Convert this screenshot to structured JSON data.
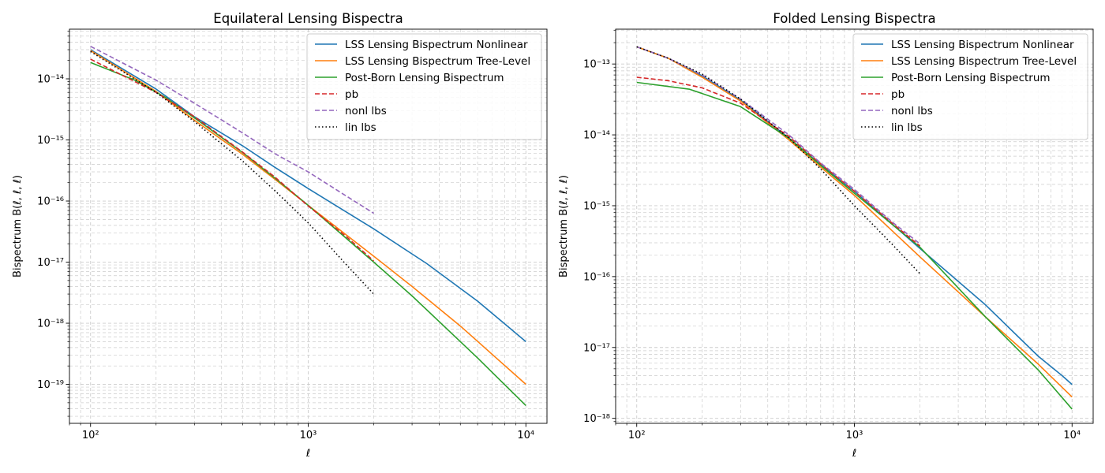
{
  "chart_data": [
    {
      "type": "line",
      "title": "Equilateral Lensing Bispectra",
      "xlabel": "ℓ",
      "ylabel": "Bispectrum B(ℓ, ℓ, ℓ)",
      "xscale": "log",
      "yscale": "log",
      "xlim": [
        80,
        12500
      ],
      "ylim": [
        2.3e-20,
        6.5e-14
      ],
      "x_ticks": [
        {
          "v": 100,
          "label": "10²"
        },
        {
          "v": 1000,
          "label": "10³"
        },
        {
          "v": 10000,
          "label": "10⁴"
        }
      ],
      "y_ticks": [
        {
          "v": 1e-19,
          "label": "10⁻¹⁹"
        },
        {
          "v": 1e-18,
          "label": "10⁻¹⁸"
        },
        {
          "v": 1e-17,
          "label": "10⁻¹⁷"
        },
        {
          "v": 1e-16,
          "label": "10⁻¹⁶"
        },
        {
          "v": 1e-15,
          "label": "10⁻¹⁵"
        },
        {
          "v": 1e-14,
          "label": "10⁻¹⁴"
        }
      ],
      "grid": true,
      "legend_position": "top-right",
      "series": [
        {
          "name": "LSS Lensing Bispectrum Nonlinear",
          "color": "#1f77b4",
          "style": "solid",
          "x": [
            100,
            200,
            300,
            500,
            700,
            1000,
            2000,
            3500,
            6000,
            10000
          ],
          "y": [
            3e-14,
            6.8e-15,
            2.4e-15,
            8e-16,
            3.6e-16,
            1.6e-16,
            3.5e-17,
            9.5e-18,
            2.3e-18,
            5e-19
          ]
        },
        {
          "name": "LSS Lensing Bispectrum Tree-Level",
          "color": "#ff7f0e",
          "style": "solid",
          "x": [
            100,
            200,
            300,
            500,
            700,
            1000,
            2000,
            3000,
            5000,
            10000
          ],
          "y": [
            2.9e-14,
            6.2e-15,
            2.1e-15,
            5.8e-16,
            2.3e-16,
            8.5e-17,
            1.25e-17,
            4e-18,
            9e-19,
            1e-19
          ]
        },
        {
          "name": "Post-Born Lensing Bispectrum",
          "color": "#2ca02c",
          "style": "solid",
          "x": [
            100,
            160,
            220,
            300,
            500,
            700,
            1000,
            2000,
            3000,
            6000,
            10000
          ],
          "y": [
            1.85e-14,
            9.5e-15,
            5e-15,
            2.3e-15,
            6.2e-16,
            2.4e-16,
            8.5e-17,
            1e-17,
            2.8e-18,
            2.7e-19,
            4.5e-20
          ]
        },
        {
          "name": "pb",
          "color": "#d62728",
          "style": "dashed",
          "x": [
            100,
            200,
            300,
            500,
            700,
            1000,
            1500,
            2000
          ],
          "y": [
            2.1e-14,
            6e-15,
            2.4e-15,
            6.3e-16,
            2.5e-16,
            8.3e-17,
            2.6e-17,
            1.05e-17
          ]
        },
        {
          "name": "nonl lbs",
          "color": "#9467bd",
          "style": "dashed",
          "x": [
            100,
            200,
            300,
            500,
            700,
            1000,
            1500,
            2000
          ],
          "y": [
            3.4e-14,
            9.5e-15,
            4e-15,
            1.3e-15,
            6e-16,
            3e-16,
            1.2e-16,
            6.3e-17
          ]
        },
        {
          "name": "lin lbs",
          "color": "#000000",
          "style": "dotted",
          "x": [
            100,
            200,
            300,
            500,
            700,
            1000,
            1500,
            2000
          ],
          "y": [
            2.8e-14,
            6e-15,
            2e-15,
            4.5e-16,
            1.5e-16,
            4.4e-17,
            9e-18,
            3e-18
          ]
        }
      ]
    },
    {
      "type": "line",
      "title": "Folded Lensing Bispectra",
      "xlabel": "ℓ",
      "ylabel": "Bispectrum B(ℓ, ℓ, ℓ)",
      "xscale": "log",
      "yscale": "log",
      "xlim": [
        80,
        12500
      ],
      "ylim": [
        8.5e-19,
        3.1e-13
      ],
      "x_ticks": [
        {
          "v": 100,
          "label": "10²"
        },
        {
          "v": 1000,
          "label": "10³"
        },
        {
          "v": 10000,
          "label": "10⁴"
        }
      ],
      "y_ticks": [
        {
          "v": 1e-18,
          "label": "10⁻¹⁸"
        },
        {
          "v": 1e-17,
          "label": "10⁻¹⁷"
        },
        {
          "v": 1e-16,
          "label": "10⁻¹⁶"
        },
        {
          "v": 1e-15,
          "label": "10⁻¹⁵"
        },
        {
          "v": 1e-14,
          "label": "10⁻¹⁴"
        },
        {
          "v": 1e-13,
          "label": "10⁻¹³"
        }
      ],
      "grid": true,
      "legend_position": "top-right",
      "series": [
        {
          "name": "LSS Lensing Bispectrum Nonlinear",
          "color": "#1f77b4",
          "style": "solid",
          "x": [
            100,
            140,
            200,
            300,
            500,
            700,
            1000,
            2000,
            4000,
            7000,
            9000,
            10000
          ],
          "y": [
            1.75e-13,
            1.2e-13,
            6.8e-14,
            3.1e-14,
            9e-15,
            3.8e-15,
            1.6e-15,
            2.5e-16,
            4e-17,
            7.5e-18,
            4e-18,
            3e-18
          ]
        },
        {
          "name": "LSS Lensing Bispectrum Tree-Level",
          "color": "#ff7f0e",
          "style": "solid",
          "x": [
            100,
            140,
            200,
            300,
            500,
            700,
            1000,
            2000,
            4000,
            7000,
            10000
          ],
          "y": [
            1.75e-13,
            1.2e-13,
            6.5e-14,
            3e-14,
            8.5e-15,
            3.5e-15,
            1.4e-15,
            1.9e-16,
            2.7e-17,
            5.8e-18,
            2e-18
          ]
        },
        {
          "name": "Post-Born Lensing Bispectrum",
          "color": "#2ca02c",
          "style": "solid",
          "x": [
            100,
            175,
            300,
            500,
            700,
            1000,
            2000,
            4000,
            7000,
            10000
          ],
          "y": [
            5.5e-14,
            4.4e-14,
            2.5e-14,
            9e-15,
            3.7e-15,
            1.5e-15,
            2.6e-16,
            2.7e-17,
            4.8e-18,
            1.35e-18
          ]
        },
        {
          "name": "pb",
          "color": "#d62728",
          "style": "dashed",
          "x": [
            100,
            140,
            200,
            300,
            500,
            700,
            1000,
            1500,
            2000
          ],
          "y": [
            6.5e-14,
            5.8e-14,
            4.6e-14,
            2.8e-14,
            9.5e-15,
            3.9e-15,
            1.6e-15,
            5.6e-16,
            2.7e-16
          ]
        },
        {
          "name": "nonl lbs",
          "color": "#9467bd",
          "style": "dashed",
          "x": [
            100,
            140,
            200,
            300,
            500,
            700,
            1000,
            1500,
            2000
          ],
          "y": [
            1.75e-13,
            1.2e-13,
            7e-14,
            3.2e-14,
            1e-14,
            4e-15,
            1.7e-15,
            5.8e-16,
            2.9e-16
          ]
        },
        {
          "name": "lin lbs",
          "color": "#000000",
          "style": "dotted",
          "x": [
            100,
            140,
            200,
            300,
            500,
            700,
            1000,
            1500,
            2000
          ],
          "y": [
            1.75e-13,
            1.2e-13,
            7.2e-14,
            3.2e-14,
            9e-15,
            3.3e-15,
            1e-15,
            2.8e-16,
            1.1e-16
          ]
        }
      ]
    }
  ]
}
